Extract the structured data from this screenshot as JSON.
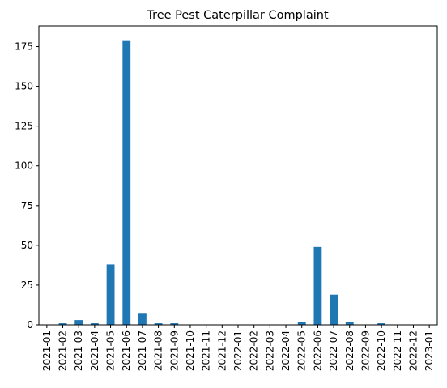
{
  "chart_data": {
    "type": "bar",
    "title": "Tree Pest Caterpillar Complaint",
    "xlabel": "",
    "ylabel": "",
    "categories": [
      "2021-01",
      "2021-02",
      "2021-03",
      "2021-04",
      "2021-05",
      "2021-06",
      "2021-07",
      "2021-08",
      "2021-09",
      "2021-10",
      "2021-11",
      "2021-12",
      "2022-01",
      "2022-02",
      "2022-03",
      "2022-04",
      "2022-05",
      "2022-06",
      "2022-07",
      "2022-08",
      "2022-09",
      "2022-10",
      "2022-11",
      "2022-12",
      "2023-01"
    ],
    "values": [
      0,
      1,
      3,
      1,
      38,
      179,
      7,
      1,
      1,
      0,
      0,
      0,
      0,
      0,
      0,
      0,
      2,
      49,
      19,
      2,
      0,
      1,
      0,
      0,
      0
    ],
    "ylim": [
      0,
      188
    ],
    "yticks": [
      0,
      25,
      50,
      75,
      100,
      125,
      150,
      175
    ],
    "bar_color": "#1f77b4",
    "grid": false,
    "legend": "none"
  }
}
